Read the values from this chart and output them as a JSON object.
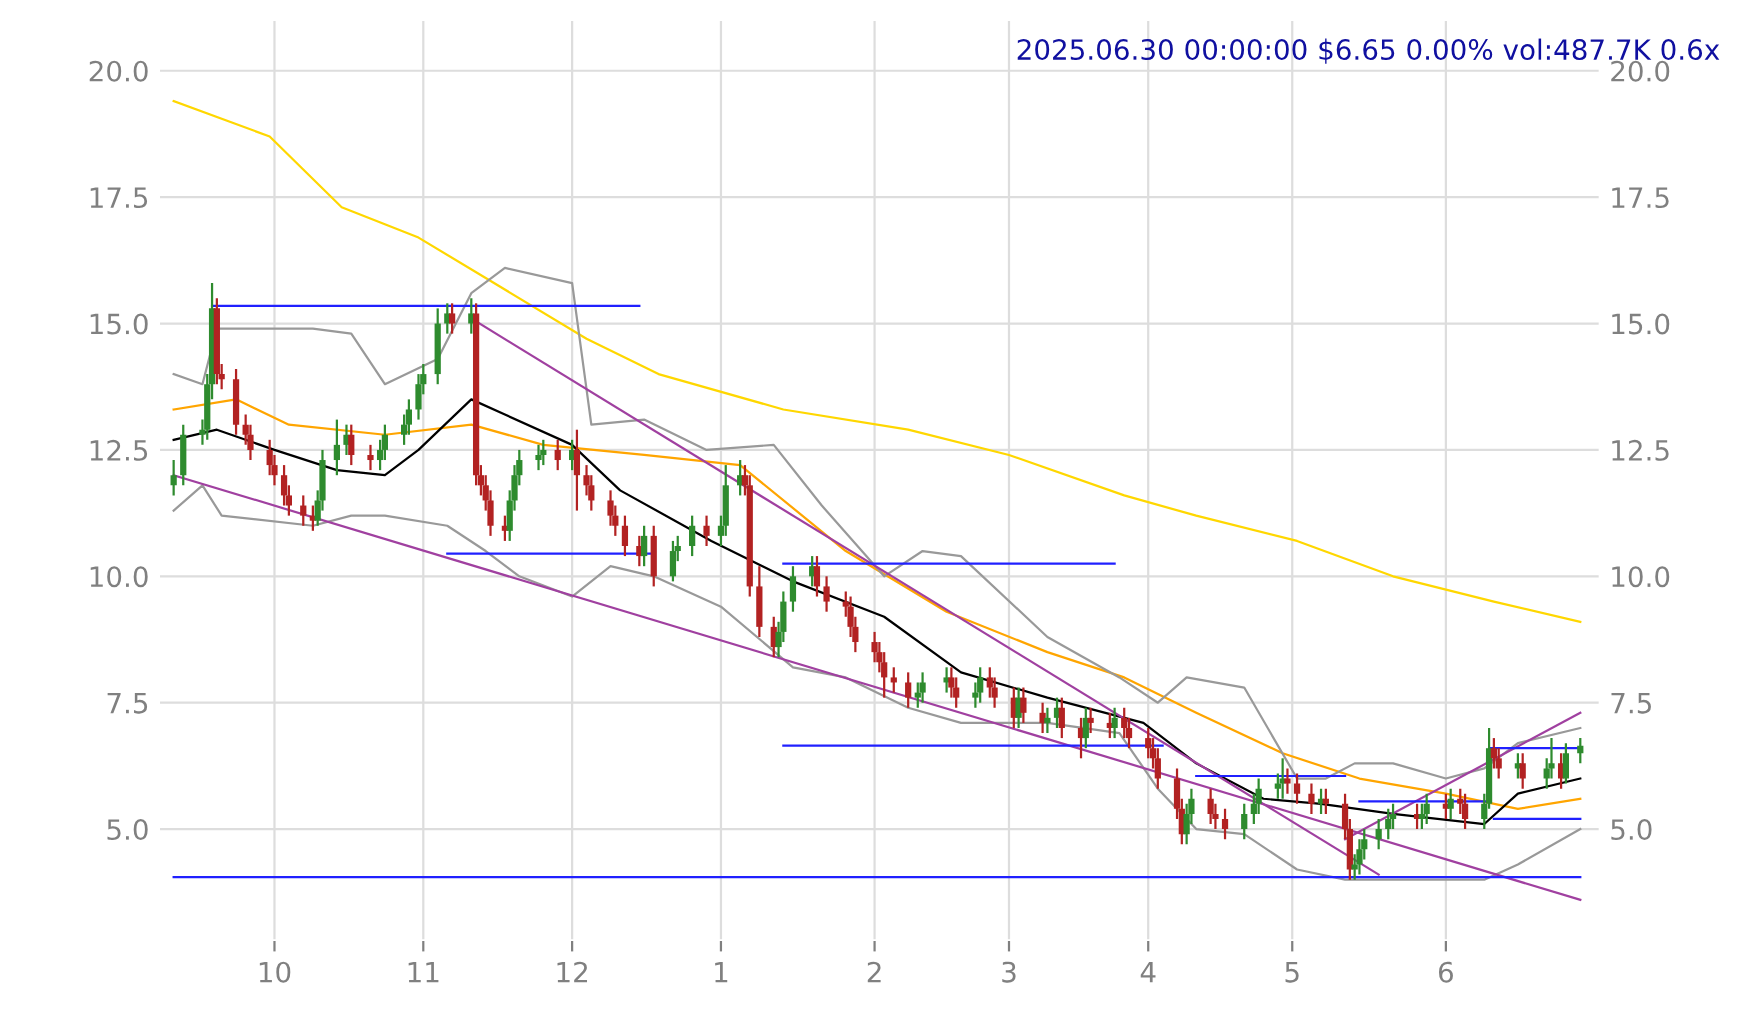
{
  "chart_data": {
    "type": "candlestick",
    "title": "2025.06.30 00:00:00 $6.65 0.00% vol:487.7K 0.6x",
    "x": [
      "2024-09-10",
      "2024-09-12",
      "2024-09-16",
      "2024-09-17",
      "2024-09-18",
      "2024-09-19",
      "2024-09-20",
      "2024-09-23",
      "2024-09-25",
      "2024-09-26",
      "2024-09-30",
      "2024-10-01",
      "2024-10-03",
      "2024-10-04",
      "2024-10-07",
      "2024-10-09",
      "2024-10-10",
      "2024-10-11",
      "2024-10-14",
      "2024-10-16",
      "2024-10-17",
      "2024-10-21",
      "2024-10-23",
      "2024-10-24",
      "2024-10-28",
      "2024-10-29",
      "2024-10-31",
      "2024-11-01",
      "2024-11-04",
      "2024-11-06",
      "2024-11-07",
      "2024-11-11",
      "2024-11-12",
      "2024-11-13",
      "2024-11-14",
      "2024-11-15",
      "2024-11-18",
      "2024-11-19",
      "2024-11-20",
      "2024-11-21",
      "2024-11-25",
      "2024-11-26",
      "2024-11-29",
      "2024-12-02",
      "2024-12-03",
      "2024-12-05",
      "2024-12-06",
      "2024-12-10",
      "2024-12-11",
      "2024-12-13",
      "2024-12-16",
      "2024-12-17",
      "2024-12-19",
      "2024-12-23",
      "2024-12-24",
      "2024-12-27",
      "2024-12-30",
      "2025-01-02",
      "2025-01-03",
      "2025-01-06",
      "2025-01-07",
      "2025-01-08",
      "2025-01-10",
      "2025-01-13",
      "2025-01-14",
      "2025-01-15",
      "2025-01-17",
      "2025-01-21",
      "2025-01-22",
      "2025-01-24",
      "2025-01-28",
      "2025-01-29",
      "2025-01-30",
      "2025-02-03",
      "2025-02-04",
      "2025-02-05",
      "2025-02-07",
      "2025-02-10",
      "2025-02-12",
      "2025-02-13",
      "2025-02-18",
      "2025-02-19",
      "2025-02-20",
      "2025-02-24",
      "2025-02-25",
      "2025-02-27",
      "2025-02-28",
      "2025-03-04",
      "2025-03-05",
      "2025-03-06",
      "2025-03-10",
      "2025-03-11",
      "2025-03-13",
      "2025-03-14",
      "2025-03-18",
      "2025-03-19",
      "2025-03-20",
      "2025-03-24",
      "2025-03-25",
      "2025-03-27",
      "2025-03-28",
      "2025-04-01",
      "2025-04-02",
      "2025-04-03",
      "2025-04-07",
      "2025-04-08",
      "2025-04-09",
      "2025-04-10",
      "2025-04-14",
      "2025-04-15",
      "2025-04-17",
      "2025-04-21",
      "2025-04-23",
      "2025-04-24",
      "2025-04-28",
      "2025-04-29",
      "2025-04-30",
      "2025-05-02",
      "2025-05-05",
      "2025-05-07",
      "2025-05-08",
      "2025-05-12",
      "2025-05-13",
      "2025-05-14",
      "2025-05-15",
      "2025-05-16",
      "2025-05-19",
      "2025-05-21",
      "2025-05-22",
      "2025-05-27",
      "2025-05-28",
      "2025-05-29",
      "2025-06-02",
      "2025-06-03",
      "2025-06-05",
      "2025-06-06",
      "2025-06-10",
      "2025-06-11",
      "2025-06-12",
      "2025-06-13",
      "2025-06-17",
      "2025-06-18",
      "2025-06-23",
      "2025-06-24",
      "2025-06-26",
      "2025-06-27",
      "2025-06-30"
    ],
    "ohlc": [
      [
        11.8,
        12.3,
        11.6,
        12.0
      ],
      [
        12.0,
        13.0,
        11.8,
        12.8
      ],
      [
        12.8,
        13.1,
        12.6,
        12.9
      ],
      [
        12.9,
        14.0,
        12.7,
        13.8
      ],
      [
        13.8,
        15.8,
        13.5,
        15.3
      ],
      [
        15.3,
        15.5,
        13.8,
        14.0
      ],
      [
        14.0,
        14.2,
        13.7,
        13.9
      ],
      [
        13.9,
        14.1,
        12.8,
        13.0
      ],
      [
        13.0,
        13.2,
        12.6,
        12.8
      ],
      [
        12.8,
        13.0,
        12.3,
        12.5
      ],
      [
        12.5,
        12.7,
        12.0,
        12.2
      ],
      [
        12.2,
        12.4,
        11.8,
        12.0
      ],
      [
        12.0,
        12.2,
        11.4,
        11.6
      ],
      [
        11.6,
        11.8,
        11.2,
        11.4
      ],
      [
        11.4,
        11.6,
        11.0,
        11.2
      ],
      [
        11.2,
        11.4,
        10.9,
        11.1
      ],
      [
        11.1,
        11.7,
        11.0,
        11.5
      ],
      [
        11.5,
        12.5,
        11.3,
        12.3
      ],
      [
        12.3,
        13.1,
        12.0,
        12.6
      ],
      [
        12.6,
        13.0,
        12.4,
        12.8
      ],
      [
        12.8,
        13.0,
        12.2,
        12.4
      ],
      [
        12.4,
        12.6,
        12.1,
        12.3
      ],
      [
        12.3,
        12.7,
        12.1,
        12.5
      ],
      [
        12.5,
        13.0,
        12.3,
        12.8
      ],
      [
        12.8,
        13.2,
        12.6,
        13.0
      ],
      [
        13.0,
        13.5,
        12.8,
        13.3
      ],
      [
        13.3,
        14.0,
        13.1,
        13.8
      ],
      [
        13.8,
        14.2,
        13.6,
        14.0
      ],
      [
        14.0,
        15.3,
        13.8,
        15.0
      ],
      [
        15.0,
        15.4,
        14.8,
        15.2
      ],
      [
        15.2,
        15.4,
        14.8,
        15.0
      ],
      [
        15.0,
        15.5,
        14.8,
        15.2
      ],
      [
        15.2,
        15.4,
        11.8,
        12.0
      ],
      [
        12.0,
        12.2,
        11.6,
        11.8
      ],
      [
        11.8,
        12.0,
        11.3,
        11.5
      ],
      [
        11.5,
        11.7,
        10.8,
        11.0
      ],
      [
        11.0,
        11.2,
        10.7,
        10.9
      ],
      [
        10.9,
        11.7,
        10.7,
        11.5
      ],
      [
        11.5,
        12.2,
        11.3,
        12.0
      ],
      [
        12.0,
        12.5,
        11.8,
        12.3
      ],
      [
        12.3,
        12.6,
        12.1,
        12.4
      ],
      [
        12.4,
        12.7,
        12.2,
        12.5
      ],
      [
        12.5,
        12.7,
        12.1,
        12.3
      ],
      [
        12.3,
        12.7,
        12.1,
        12.5
      ],
      [
        12.5,
        12.9,
        11.3,
        12.0
      ],
      [
        12.0,
        12.2,
        11.6,
        11.8
      ],
      [
        11.8,
        12.0,
        11.3,
        11.5
      ],
      [
        11.5,
        11.7,
        11.0,
        11.2
      ],
      [
        11.2,
        11.4,
        10.8,
        11.0
      ],
      [
        11.0,
        11.2,
        10.4,
        10.6
      ],
      [
        10.6,
        10.8,
        10.2,
        10.4
      ],
      [
        10.4,
        11.0,
        10.2,
        10.8
      ],
      [
        10.8,
        11.0,
        9.8,
        10.0
      ],
      [
        10.0,
        10.7,
        9.9,
        10.5
      ],
      [
        10.5,
        10.8,
        10.3,
        10.6
      ],
      [
        10.6,
        11.2,
        10.4,
        11.0
      ],
      [
        11.0,
        11.2,
        10.6,
        10.8
      ],
      [
        10.8,
        11.2,
        10.6,
        11.0
      ],
      [
        11.0,
        12.2,
        10.8,
        11.8
      ],
      [
        11.8,
        12.3,
        11.6,
        12.0
      ],
      [
        12.0,
        12.2,
        11.6,
        11.8
      ],
      [
        11.8,
        12.0,
        9.6,
        9.8
      ],
      [
        9.8,
        10.2,
        8.8,
        9.0
      ],
      [
        9.0,
        9.2,
        8.4,
        8.6
      ],
      [
        8.6,
        9.1,
        8.4,
        8.9
      ],
      [
        8.9,
        9.7,
        8.7,
        9.5
      ],
      [
        9.5,
        10.2,
        9.3,
        10.0
      ],
      [
        10.0,
        10.4,
        9.8,
        10.2
      ],
      [
        10.2,
        10.4,
        9.6,
        9.8
      ],
      [
        9.8,
        10.0,
        9.3,
        9.5
      ],
      [
        9.5,
        9.7,
        9.2,
        9.4
      ],
      [
        9.4,
        9.6,
        8.8,
        9.0
      ],
      [
        9.0,
        9.2,
        8.5,
        8.7
      ],
      [
        8.7,
        8.9,
        8.3,
        8.5
      ],
      [
        8.5,
        8.7,
        8.1,
        8.3
      ],
      [
        8.3,
        8.5,
        7.6,
        8.0
      ],
      [
        8.0,
        8.2,
        7.7,
        7.9
      ],
      [
        7.9,
        8.1,
        7.4,
        7.6
      ],
      [
        7.6,
        7.9,
        7.4,
        7.7
      ],
      [
        7.7,
        8.1,
        7.5,
        7.9
      ],
      [
        7.9,
        8.2,
        7.7,
        8.0
      ],
      [
        8.0,
        8.2,
        7.6,
        7.8
      ],
      [
        7.8,
        8.0,
        7.4,
        7.6
      ],
      [
        7.6,
        7.9,
        7.4,
        7.7
      ],
      [
        7.7,
        8.2,
        7.5,
        8.0
      ],
      [
        8.0,
        8.2,
        7.6,
        7.8
      ],
      [
        7.8,
        8.0,
        7.4,
        7.6
      ],
      [
        7.6,
        7.8,
        7.0,
        7.2
      ],
      [
        7.2,
        7.8,
        7.0,
        7.6
      ],
      [
        7.6,
        7.8,
        7.1,
        7.3
      ],
      [
        7.3,
        7.5,
        6.9,
        7.1
      ],
      [
        7.1,
        7.4,
        6.9,
        7.2
      ],
      [
        7.2,
        7.6,
        7.0,
        7.4
      ],
      [
        7.4,
        7.6,
        6.8,
        7.0
      ],
      [
        7.0,
        7.2,
        6.4,
        6.8
      ],
      [
        6.8,
        7.4,
        6.6,
        7.2
      ],
      [
        7.2,
        7.4,
        6.9,
        7.1
      ],
      [
        7.1,
        7.3,
        6.8,
        7.0
      ],
      [
        7.0,
        7.4,
        6.8,
        7.2
      ],
      [
        7.2,
        7.4,
        6.8,
        7.0
      ],
      [
        7.0,
        7.2,
        6.6,
        6.8
      ],
      [
        6.8,
        7.0,
        6.4,
        6.6
      ],
      [
        6.6,
        6.8,
        6.2,
        6.4
      ],
      [
        6.4,
        6.6,
        5.8,
        6.0
      ],
      [
        6.0,
        6.2,
        5.2,
        5.4
      ],
      [
        5.4,
        5.6,
        4.7,
        4.9
      ],
      [
        4.9,
        5.5,
        4.7,
        5.3
      ],
      [
        5.3,
        5.8,
        5.1,
        5.6
      ],
      [
        5.6,
        5.8,
        5.1,
        5.3
      ],
      [
        5.3,
        5.5,
        5.0,
        5.2
      ],
      [
        5.2,
        5.4,
        4.8,
        5.0
      ],
      [
        5.0,
        5.5,
        4.8,
        5.3
      ],
      [
        5.3,
        5.7,
        5.1,
        5.5
      ],
      [
        5.5,
        6.0,
        5.3,
        5.8
      ],
      [
        5.8,
        6.1,
        5.6,
        5.9
      ],
      [
        5.9,
        6.4,
        5.6,
        6.0
      ],
      [
        6.0,
        6.2,
        5.7,
        5.9
      ],
      [
        5.9,
        6.1,
        5.5,
        5.7
      ],
      [
        5.7,
        5.9,
        5.3,
        5.5
      ],
      [
        5.5,
        5.8,
        5.3,
        5.6
      ],
      [
        5.6,
        5.8,
        5.3,
        5.5
      ],
      [
        5.5,
        5.7,
        4.8,
        5.0
      ],
      [
        5.0,
        5.2,
        4.0,
        4.2
      ],
      [
        4.2,
        4.5,
        4.0,
        4.3
      ],
      [
        4.3,
        4.8,
        4.1,
        4.6
      ],
      [
        4.6,
        5.0,
        4.4,
        4.8
      ],
      [
        4.8,
        5.2,
        4.6,
        5.0
      ],
      [
        5.0,
        5.4,
        4.8,
        5.2
      ],
      [
        5.2,
        5.5,
        5.0,
        5.3
      ],
      [
        5.3,
        5.5,
        5.0,
        5.2
      ],
      [
        5.2,
        5.5,
        5.0,
        5.3
      ],
      [
        5.3,
        5.7,
        5.1,
        5.5
      ],
      [
        5.5,
        5.7,
        5.2,
        5.4
      ],
      [
        5.4,
        5.8,
        5.2,
        5.6
      ],
      [
        5.6,
        5.8,
        5.3,
        5.5
      ],
      [
        5.5,
        5.7,
        5.0,
        5.2
      ],
      [
        5.2,
        5.7,
        5.0,
        5.5
      ],
      [
        5.5,
        7.0,
        5.4,
        6.6
      ],
      [
        6.6,
        6.8,
        6.2,
        6.4
      ],
      [
        6.4,
        6.6,
        6.0,
        6.2
      ],
      [
        6.2,
        6.5,
        6.0,
        6.3
      ],
      [
        6.3,
        6.5,
        5.8,
        6.0
      ],
      [
        6.0,
        6.4,
        5.8,
        6.2
      ],
      [
        6.2,
        6.8,
        6.0,
        6.3
      ],
      [
        6.3,
        6.5,
        5.8,
        6.0
      ],
      [
        6.0,
        6.7,
        5.9,
        6.5
      ],
      [
        6.5,
        6.8,
        6.3,
        6.65
      ]
    ],
    "series": [
      {
        "type": "line",
        "color": "#ffd700",
        "x": [
          "2024-09-10",
          "2024-09-30",
          "2024-10-15",
          "2024-10-31",
          "2024-11-14",
          "2024-12-05",
          "2024-12-20",
          "2025-01-15",
          "2025-02-10",
          "2025-03-03",
          "2025-03-27",
          "2025-04-11",
          "2025-05-02",
          "2025-05-22",
          "2025-06-12",
          "2025-06-30"
        ],
        "values": [
          19.4,
          18.7,
          17.3,
          16.7,
          15.9,
          14.7,
          14.0,
          13.3,
          12.9,
          12.4,
          11.6,
          11.2,
          10.7,
          10.0,
          9.5,
          9.1
        ]
      },
      {
        "type": "line",
        "color": "#ffa500",
        "x": [
          "2024-09-10",
          "2024-09-23",
          "2024-10-04",
          "2024-10-24",
          "2024-11-11",
          "2024-11-26",
          "2024-12-17",
          "2025-01-06",
          "2025-01-28",
          "2025-02-18",
          "2025-03-11",
          "2025-03-27",
          "2025-04-11",
          "2025-04-29",
          "2025-05-15",
          "2025-06-02",
          "2025-06-17",
          "2025-06-30"
        ],
        "values": [
          13.3,
          13.5,
          13.0,
          12.8,
          13.0,
          12.6,
          12.4,
          12.2,
          10.5,
          9.3,
          8.5,
          8.0,
          7.3,
          6.5,
          6.0,
          5.7,
          5.4,
          5.6
        ]
      },
      {
        "type": "line",
        "color": "#000000",
        "x": [
          "2024-09-10",
          "2024-09-19",
          "2024-10-01",
          "2024-10-14",
          "2024-10-24",
          "2024-10-31",
          "2024-11-11",
          "2024-11-18",
          "2024-12-02",
          "2024-12-12",
          "2024-12-31",
          "2025-01-17",
          "2025-02-05",
          "2025-02-21",
          "2025-03-11",
          "2025-03-31",
          "2025-04-11",
          "2025-04-25",
          "2025-05-07",
          "2025-05-22",
          "2025-06-10",
          "2025-06-17",
          "2025-06-30"
        ],
        "values": [
          12.7,
          12.9,
          12.5,
          12.1,
          12.0,
          12.5,
          13.5,
          13.2,
          12.6,
          11.7,
          10.7,
          9.9,
          9.2,
          8.1,
          7.6,
          7.1,
          6.3,
          5.6,
          5.5,
          5.3,
          5.1,
          5.7,
          6.0
        ]
      },
      {
        "type": "line",
        "color": "#999999",
        "x": [
          "2024-09-10",
          "2024-09-16",
          "2024-09-19",
          "2024-10-09",
          "2024-10-17",
          "2024-10-24",
          "2024-11-04",
          "2024-11-11",
          "2024-11-18",
          "2024-12-02",
          "2024-12-06",
          "2024-12-17",
          "2024-12-30",
          "2025-01-13",
          "2025-01-23",
          "2025-02-05",
          "2025-02-13",
          "2025-02-21",
          "2025-03-11",
          "2025-03-26",
          "2025-04-03",
          "2025-04-09",
          "2025-04-21",
          "2025-05-02",
          "2025-05-08",
          "2025-05-14",
          "2025-05-22",
          "2025-06-02",
          "2025-06-10",
          "2025-06-17",
          "2025-06-30"
        ],
        "values": [
          14.0,
          13.8,
          14.9,
          14.9,
          14.8,
          13.8,
          14.3,
          15.6,
          16.1,
          15.8,
          13.0,
          13.1,
          12.5,
          12.6,
          11.4,
          10.0,
          10.5,
          10.4,
          8.8,
          8.0,
          7.5,
          8.0,
          7.8,
          6.0,
          6.0,
          6.3,
          6.3,
          6.0,
          6.2,
          6.7,
          7.0
        ]
      },
      {
        "type": "line",
        "color": "#999999",
        "x": [
          "2024-09-10",
          "2024-09-16",
          "2024-09-20",
          "2024-10-09",
          "2024-10-17",
          "2024-10-24",
          "2024-11-06",
          "2024-11-14",
          "2024-11-21",
          "2024-12-02",
          "2024-12-10",
          "2024-12-19",
          "2025-01-02",
          "2025-01-17",
          "2025-01-28",
          "2025-02-10",
          "2025-02-21",
          "2025-03-11",
          "2025-03-26",
          "2025-04-03",
          "2025-04-11",
          "2025-04-21",
          "2025-05-02",
          "2025-05-12",
          "2025-05-22",
          "2025-06-02",
          "2025-06-10",
          "2025-06-17",
          "2025-06-30"
        ],
        "values": [
          11.3,
          11.8,
          11.2,
          11.0,
          11.2,
          11.2,
          11.0,
          10.5,
          10.0,
          9.6,
          10.2,
          10.0,
          9.4,
          8.2,
          8.0,
          7.4,
          7.1,
          7.1,
          6.9,
          5.8,
          5.0,
          4.9,
          4.2,
          4.0,
          4.0,
          4.0,
          4.0,
          4.3,
          5.0
        ]
      },
      {
        "type": "line",
        "color": "#a040a0",
        "x": [
          "2024-11-11",
          "2025-05-19"
        ],
        "values": [
          15.1,
          4.1
        ]
      },
      {
        "type": "line",
        "color": "#a040a0",
        "x": [
          "2024-09-10",
          "2025-06-30"
        ],
        "values": [
          12.0,
          3.6
        ]
      },
      {
        "type": "line",
        "color": "#a040a0",
        "x": [
          "2025-05-12",
          "2025-06-30"
        ],
        "values": [
          4.8,
          7.3
        ]
      },
      {
        "type": "line",
        "color": "#2020ff",
        "x": [
          "2024-09-18",
          "2024-12-16"
        ],
        "values": [
          15.35,
          15.35
        ]
      },
      {
        "type": "line",
        "color": "#2020ff",
        "x": [
          "2024-11-06",
          "2024-12-19"
        ],
        "values": [
          10.45,
          10.45
        ]
      },
      {
        "type": "line",
        "color": "#2020ff",
        "x": [
          "2025-01-15",
          "2025-03-25"
        ],
        "values": [
          10.25,
          10.25
        ]
      },
      {
        "type": "line",
        "color": "#2020ff",
        "x": [
          "2025-01-15",
          "2025-04-04"
        ],
        "values": [
          6.65,
          6.65
        ]
      },
      {
        "type": "line",
        "color": "#2020ff",
        "x": [
          "2025-04-11",
          "2025-05-12"
        ],
        "values": [
          6.05,
          6.05
        ]
      },
      {
        "type": "line",
        "color": "#2020ff",
        "x": [
          "2025-05-15",
          "2025-06-11"
        ],
        "values": [
          5.55,
          5.55
        ]
      },
      {
        "type": "line",
        "color": "#2020ff",
        "x": [
          "2025-06-11",
          "2025-06-30"
        ],
        "values": [
          6.6,
          6.6
        ]
      },
      {
        "type": "line",
        "color": "#2020ff",
        "x": [
          "2025-06-12",
          "2025-06-30"
        ],
        "values": [
          5.2,
          5.2
        ]
      },
      {
        "type": "line",
        "color": "#2020ff",
        "x": [
          "2024-09-10",
          "2025-06-30"
        ],
        "values": [
          4.05,
          4.05
        ]
      }
    ],
    "xlim": [
      "2024-09-07",
      "2025-07-04"
    ],
    "xticks": [
      {
        "value": "2024-10-01",
        "label": "10"
      },
      {
        "value": "2024-11-01",
        "label": "11"
      },
      {
        "value": "2024-12-02",
        "label": "12"
      },
      {
        "value": "2025-01-02",
        "label": "1"
      },
      {
        "value": "2025-02-03",
        "label": "2"
      },
      {
        "value": "2025-03-03",
        "label": "3"
      },
      {
        "value": "2025-04-01",
        "label": "4"
      },
      {
        "value": "2025-05-01",
        "label": "5"
      },
      {
        "value": "2025-06-02",
        "label": "6"
      }
    ],
    "ylim": [
      2.8,
      21
    ],
    "yticks": [
      {
        "value": 5,
        "label": "5.0"
      },
      {
        "value": 7.5,
        "label": "7.5"
      },
      {
        "value": 10,
        "label": "10.0"
      },
      {
        "value": 12.5,
        "label": "12.5"
      },
      {
        "value": 15,
        "label": "15.0"
      },
      {
        "value": 17.5,
        "label": "17.5"
      },
      {
        "value": 20,
        "label": "20.0"
      }
    ],
    "y2lim": [
      2.8,
      21
    ],
    "y2ticks": [
      {
        "value": 5,
        "label": "5.0"
      },
      {
        "value": 7.5,
        "label": "7.5"
      },
      {
        "value": 10,
        "label": "10.0"
      },
      {
        "value": 12.5,
        "label": "12.5"
      },
      {
        "value": 15,
        "label": "15.0"
      },
      {
        "value": 17.5,
        "label": "17.5"
      },
      {
        "value": 20,
        "label": "20.0"
      }
    ],
    "grid": true
  }
}
